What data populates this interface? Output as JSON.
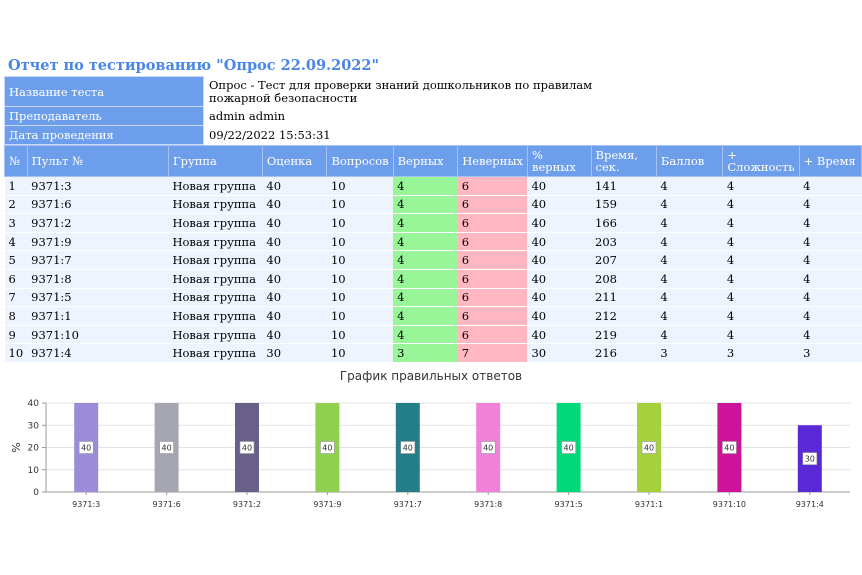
{
  "title": "Отчет по тестированию \"Опрос 22.09.2022\"",
  "info": [
    {
      "label": "Название теста",
      "value": "Опрос - Тест для проверки знаний дошкольников по правилам пожарной безопасности"
    },
    {
      "label": "Преподаватель",
      "value": "admin admin"
    },
    {
      "label": "Дата проведения",
      "value": "09/22/2022 15:53:31"
    }
  ],
  "table": {
    "headers": [
      "№",
      "Пульт №",
      "Группа",
      "Оценка",
      "Вопросов",
      "Верных",
      "Неверных",
      "% верных",
      "Время, сек.",
      "Баллов",
      "+ Сложность",
      "+ Время"
    ],
    "rows": [
      [
        "1",
        "9371:3",
        "Новая группа",
        "40",
        "10",
        "4",
        "6",
        "40",
        "141",
        "4",
        "4",
        "4"
      ],
      [
        "2",
        "9371:6",
        "Новая группа",
        "40",
        "10",
        "4",
        "6",
        "40",
        "159",
        "4",
        "4",
        "4"
      ],
      [
        "3",
        "9371:2",
        "Новая группа",
        "40",
        "10",
        "4",
        "6",
        "40",
        "166",
        "4",
        "4",
        "4"
      ],
      [
        "4",
        "9371:9",
        "Новая группа",
        "40",
        "10",
        "4",
        "6",
        "40",
        "203",
        "4",
        "4",
        "4"
      ],
      [
        "5",
        "9371:7",
        "Новая группа",
        "40",
        "10",
        "4",
        "6",
        "40",
        "207",
        "4",
        "4",
        "4"
      ],
      [
        "6",
        "9371:8",
        "Новая группа",
        "40",
        "10",
        "4",
        "6",
        "40",
        "208",
        "4",
        "4",
        "4"
      ],
      [
        "7",
        "9371:5",
        "Новая группа",
        "40",
        "10",
        "4",
        "6",
        "40",
        "211",
        "4",
        "4",
        "4"
      ],
      [
        "8",
        "9371:1",
        "Новая группа",
        "40",
        "10",
        "4",
        "6",
        "40",
        "212",
        "4",
        "4",
        "4"
      ],
      [
        "9",
        "9371:10",
        "Новая группа",
        "40",
        "10",
        "4",
        "6",
        "40",
        "219",
        "4",
        "4",
        "4"
      ],
      [
        "10",
        "9371:4",
        "Новая группа",
        "30",
        "10",
        "3",
        "7",
        "30",
        "216",
        "3",
        "3",
        "3"
      ]
    ]
  },
  "colors": {
    "header_bg": "#6d9eeb",
    "title": "#4a86e8",
    "correct_bg": "#98f598",
    "wrong_bg": "#ffb8c2",
    "grade_bg": "#e6fbfd"
  },
  "chart_data": {
    "type": "bar",
    "title": "График правильных ответов",
    "ylabel": "%",
    "xlabel": "",
    "categories": [
      "9371:3",
      "9371:6",
      "9371:2",
      "9371:9",
      "9371:7",
      "9371:8",
      "9371:5",
      "9371:1",
      "9371:10",
      "9371:4"
    ],
    "values": [
      40,
      40,
      40,
      40,
      40,
      40,
      40,
      40,
      40,
      30
    ],
    "colors": [
      "#9b8bd9",
      "#a6a6b3",
      "#69608a",
      "#8fd14f",
      "#247e87",
      "#f080d8",
      "#00d97a",
      "#a5d13c",
      "#cc1399",
      "#5a28d6"
    ],
    "ylim": [
      0,
      40
    ],
    "yticks": [
      0,
      10,
      20,
      30,
      40
    ],
    "data_labels": true,
    "grid": true
  }
}
